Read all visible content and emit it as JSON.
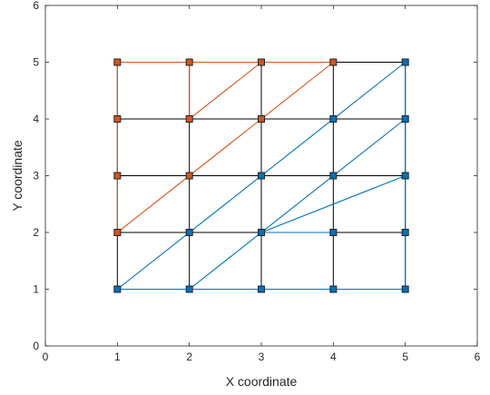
{
  "chart_data": {
    "type": "line",
    "title": "",
    "xlabel": "X coordinate",
    "ylabel": "Y coordinate",
    "xlim": [
      0,
      6
    ],
    "ylim": [
      0,
      6
    ],
    "xticks": [
      "0",
      "1",
      "2",
      "3",
      "4",
      "5",
      "6"
    ],
    "yticks": [
      "0",
      "1",
      "2",
      "3",
      "4",
      "5",
      "6"
    ],
    "grid": false,
    "colors": {
      "mesh": "#000000",
      "orange": "#D95319",
      "blue": "#0072BD"
    },
    "mesh_lines": [
      [
        [
          1,
          1
        ],
        [
          1,
          5
        ]
      ],
      [
        [
          2,
          1
        ],
        [
          2,
          5
        ]
      ],
      [
        [
          3,
          1
        ],
        [
          3,
          5
        ]
      ],
      [
        [
          4,
          1
        ],
        [
          4,
          5
        ]
      ],
      [
        [
          5,
          1
        ],
        [
          5,
          5
        ]
      ],
      [
        [
          1,
          1
        ],
        [
          5,
          1
        ]
      ],
      [
        [
          1,
          2
        ],
        [
          5,
          2
        ]
      ],
      [
        [
          1,
          3
        ],
        [
          5,
          3
        ]
      ],
      [
        [
          1,
          4
        ],
        [
          5,
          4
        ]
      ],
      [
        [
          1,
          5
        ],
        [
          5,
          5
        ]
      ]
    ],
    "series": [
      {
        "color": "orange",
        "segments": [
          [
            [
              1,
              2
            ],
            [
              1,
              5
            ]
          ],
          [
            [
              1,
              5
            ],
            [
              4,
              5
            ]
          ],
          [
            [
              2,
              4
            ],
            [
              2,
              5
            ]
          ],
          [
            [
              1,
              2
            ],
            [
              3,
              4
            ]
          ],
          [
            [
              2,
              4
            ],
            [
              3,
              5
            ]
          ],
          [
            [
              3,
              4
            ],
            [
              4,
              5
            ]
          ]
        ],
        "points": [
          [
            1,
            5
          ],
          [
            2,
            5
          ],
          [
            3,
            5
          ],
          [
            4,
            5
          ],
          [
            1,
            4
          ],
          [
            2,
            4
          ],
          [
            3,
            4
          ],
          [
            1,
            3
          ],
          [
            2,
            3
          ],
          [
            1,
            2
          ]
        ]
      },
      {
        "color": "blue",
        "segments": [
          [
            [
              1,
              1
            ],
            [
              5,
              1
            ]
          ],
          [
            [
              5,
              1
            ],
            [
              5,
              5
            ]
          ],
          [
            [
              1,
              1
            ],
            [
              5,
              5
            ]
          ],
          [
            [
              2,
              1
            ],
            [
              5,
              4
            ]
          ],
          [
            [
              3,
              2
            ],
            [
              5,
              3
            ]
          ],
          [
            [
              3,
              2
            ],
            [
              4,
              2
            ]
          ]
        ],
        "points": [
          [
            5,
            5
          ],
          [
            4,
            4
          ],
          [
            5,
            4
          ],
          [
            3,
            3
          ],
          [
            4,
            3
          ],
          [
            5,
            3
          ],
          [
            2,
            2
          ],
          [
            3,
            2
          ],
          [
            4,
            2
          ],
          [
            5,
            2
          ],
          [
            1,
            1
          ],
          [
            2,
            1
          ],
          [
            3,
            1
          ],
          [
            4,
            1
          ],
          [
            5,
            1
          ]
        ]
      }
    ]
  }
}
